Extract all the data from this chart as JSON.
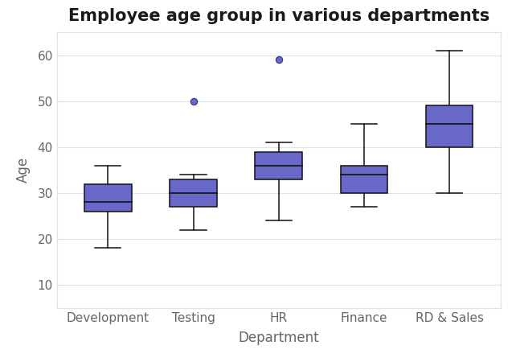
{
  "title": "Employee age group in various departments",
  "xlabel": "Department",
  "ylabel": "Age",
  "categories": [
    "Development",
    "Testing",
    "HR",
    "Finance",
    "RD & Sales"
  ],
  "box_data": [
    {
      "min": 18,
      "q1": 26,
      "median": 28,
      "q3": 32,
      "max": 36,
      "outliers": []
    },
    {
      "min": 22,
      "q1": 27,
      "median": 30,
      "q3": 33,
      "max": 34,
      "outliers": [
        50
      ]
    },
    {
      "min": 24,
      "q1": 33,
      "median": 36,
      "q3": 39,
      "max": 41,
      "outliers": [
        59
      ]
    },
    {
      "min": 27,
      "q1": 30,
      "median": 34,
      "q3": 36,
      "max": 45,
      "outliers": []
    },
    {
      "min": 30,
      "q1": 40,
      "median": 45,
      "q3": 49,
      "max": 61,
      "outliers": []
    }
  ],
  "box_color": "#6868C8",
  "box_edge_color": "#111111",
  "median_color": "#111111",
  "whisker_color": "#111111",
  "cap_color": "#111111",
  "outlier_color": "#6868C8",
  "outlier_edge_color": "#333388",
  "background_color": "#ffffff",
  "grid_color": "#dde2ef",
  "title_fontsize": 15,
  "axis_label_fontsize": 12,
  "tick_fontsize": 11,
  "ylim": [
    5,
    65
  ],
  "yticks": [
    10,
    20,
    30,
    40,
    50,
    60
  ],
  "box_width": 0.55,
  "cap_ratio": 0.55
}
